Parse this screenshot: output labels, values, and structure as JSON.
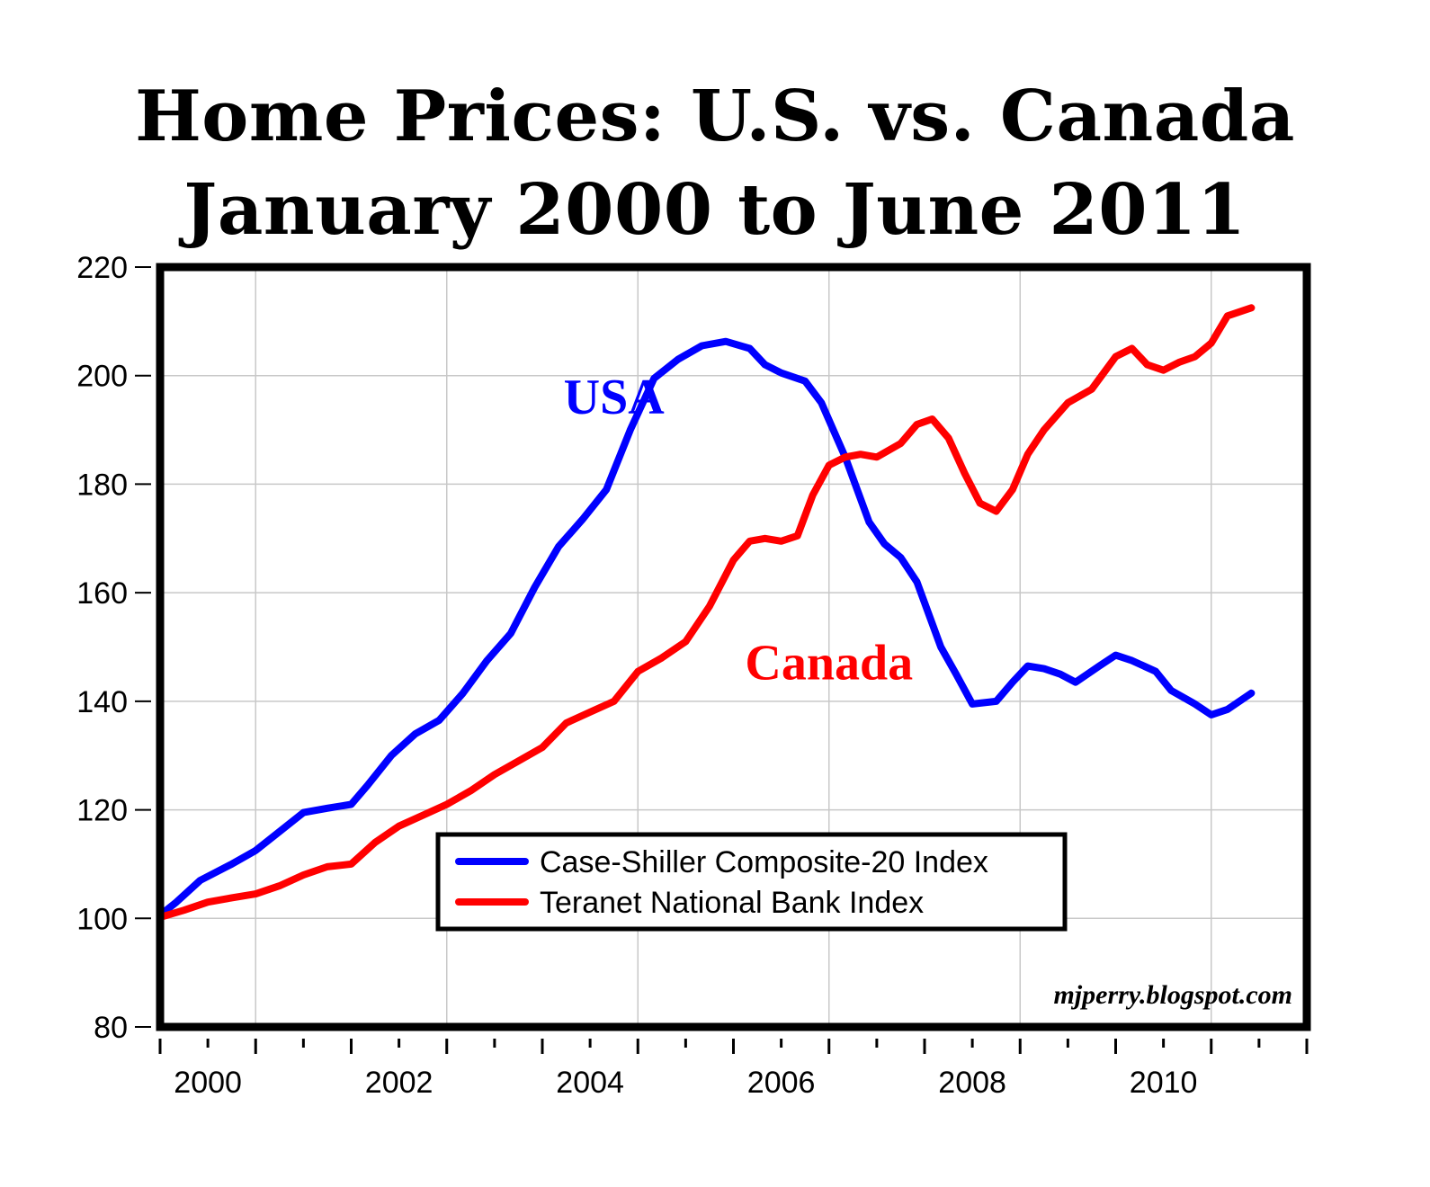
{
  "chart_data": {
    "type": "line",
    "title": "Home Prices: U.S. vs. Canada",
    "subtitle": "January 2000 to June 2011",
    "xlabel": "",
    "ylabel": "",
    "xlim": [
      2000.0,
      2012.0
    ],
    "ylim": [
      80,
      220
    ],
    "y_ticks": [
      80,
      100,
      120,
      140,
      160,
      180,
      200,
      220
    ],
    "x_tick_labels": [
      "2000",
      "2002",
      "2004",
      "2006",
      "2008",
      "2010"
    ],
    "x_tick_values": [
      2000,
      2002,
      2004,
      2006,
      2008,
      2010
    ],
    "grid": true,
    "legend_position": "bottom-center",
    "watermark": "mjperry.blogspot.com",
    "annotations": [
      {
        "text": "USA",
        "x": 2004.75,
        "y": 193,
        "color": "#0000ff"
      },
      {
        "text": "Canada",
        "x": 2007.0,
        "y": 144,
        "color": "#ff0000"
      }
    ],
    "series": [
      {
        "name": "Case-Shiller Composite-20 Index",
        "color": "#0000ff",
        "x": [
          2000.0,
          2000.17,
          2000.42,
          2000.75,
          2001.0,
          2001.25,
          2001.5,
          2001.75,
          2002.0,
          2002.17,
          2002.42,
          2002.67,
          2002.92,
          2003.17,
          2003.42,
          2003.67,
          2003.92,
          2004.17,
          2004.42,
          2004.67,
          2004.92,
          2005.17,
          2005.42,
          2005.67,
          2005.92,
          2006.17,
          2006.33,
          2006.5,
          2006.75,
          2006.92,
          2007.17,
          2007.42,
          2007.58,
          2007.75,
          2007.92,
          2008.17,
          2008.33,
          2008.5,
          2008.75,
          2008.92,
          2009.08,
          2009.25,
          2009.42,
          2009.58,
          2009.83,
          2010.0,
          2010.17,
          2010.42,
          2010.58,
          2010.83,
          2011.0,
          2011.17,
          2011.42
        ],
        "y": [
          100.6,
          103.0,
          107.0,
          110.0,
          112.5,
          116.0,
          119.5,
          120.3,
          121.0,
          124.5,
          130.0,
          134.0,
          136.5,
          141.5,
          147.5,
          152.5,
          161.0,
          168.5,
          173.5,
          179.0,
          190.0,
          199.5,
          203.0,
          205.5,
          206.3,
          205.0,
          202.0,
          200.5,
          199.0,
          195.0,
          185.0,
          173.0,
          169.0,
          166.5,
          162.0,
          150.0,
          145.0,
          139.5,
          140.0,
          143.5,
          146.5,
          146.0,
          145.0,
          143.5,
          146.5,
          148.5,
          147.5,
          145.5,
          142.0,
          139.5,
          137.5,
          138.5,
          141.5
        ]
      },
      {
        "name": "Teranet National Bank Index",
        "color": "#ff0000",
        "x": [
          2000.0,
          2000.25,
          2000.5,
          2000.75,
          2001.0,
          2001.25,
          2001.5,
          2001.75,
          2002.0,
          2002.25,
          2002.5,
          2002.75,
          2003.0,
          2003.25,
          2003.5,
          2003.75,
          2004.0,
          2004.25,
          2004.5,
          2004.75,
          2005.0,
          2005.25,
          2005.5,
          2005.75,
          2006.0,
          2006.17,
          2006.33,
          2006.5,
          2006.67,
          2006.83,
          2007.0,
          2007.17,
          2007.33,
          2007.5,
          2007.75,
          2007.92,
          2008.08,
          2008.25,
          2008.42,
          2008.58,
          2008.75,
          2008.92,
          2009.08,
          2009.25,
          2009.5,
          2009.75,
          2010.0,
          2010.17,
          2010.33,
          2010.5,
          2010.67,
          2010.83,
          2011.0,
          2011.17,
          2011.42
        ],
        "y": [
          100.2,
          101.5,
          103.0,
          103.8,
          104.5,
          106.0,
          108.0,
          109.5,
          110.0,
          114.0,
          117.0,
          119.0,
          121.0,
          123.5,
          126.5,
          129.0,
          131.5,
          136.0,
          138.0,
          140.0,
          145.5,
          148.0,
          151.0,
          157.5,
          166.0,
          169.5,
          170.0,
          169.5,
          170.5,
          178.0,
          183.5,
          185.0,
          185.5,
          185.0,
          187.5,
          191.0,
          192.0,
          188.5,
          182.0,
          176.5,
          175.0,
          179.0,
          185.5,
          190.0,
          195.0,
          197.5,
          203.5,
          205.0,
          202.0,
          201.0,
          202.5,
          203.5,
          206.0,
          211.0,
          212.5
        ]
      }
    ]
  }
}
